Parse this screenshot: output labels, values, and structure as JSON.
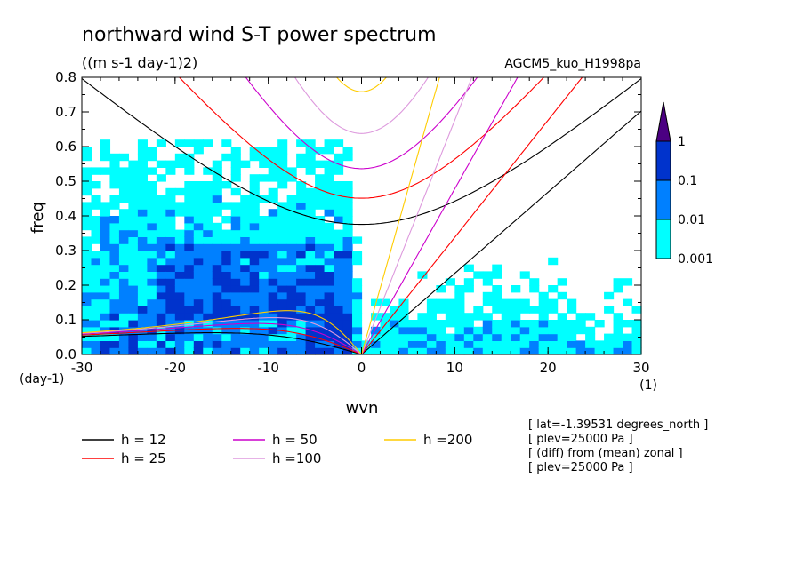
{
  "chart_data": {
    "type": "heatmap",
    "title": "northward wind S-T power spectrum",
    "subtitle": "((m s-1 day-1)2)",
    "run_label": "AGCM5_kuo_H1998pa",
    "xlabel": "wvn",
    "ylabel": "freq",
    "x_unit": "(1)",
    "y_unit": "(day-1)",
    "xlim": [
      -30,
      30
    ],
    "ylim": [
      0.0,
      0.8
    ],
    "x_ticks": [
      "-30",
      "-20",
      "-10",
      "0",
      "10",
      "20",
      "30"
    ],
    "y_ticks": [
      "0.0",
      "0.1",
      "0.2",
      "0.3",
      "0.4",
      "0.5",
      "0.6",
      "0.7",
      "0.8"
    ],
    "color_levels": [
      "0.001",
      "0.01",
      "0.1",
      "1"
    ],
    "level_colors": [
      "#00ffff",
      "#0080ff",
      "#0033cc",
      "#4b0082"
    ],
    "dispersion_curves": [
      {
        "name": "h = 12",
        "equivalent_depth": 12,
        "color": "#000000"
      },
      {
        "name": "h = 25",
        "equivalent_depth": 25,
        "color": "#ff0000"
      },
      {
        "name": "h = 50",
        "equivalent_depth": 50,
        "color": "#cc00cc"
      },
      {
        "name": "h =100",
        "equivalent_depth": 100,
        "color": "#dd99dd"
      },
      {
        "name": "h =200",
        "equivalent_depth": 200,
        "color": "#ffcc00"
      }
    ],
    "info_lines": [
      "[ lat=-1.39531 degrees_north ]",
      "[ plev=25000 Pa ]",
      "[ (diff) from (mean) zonal ]",
      "[ plev=25000 Pa ]"
    ]
  }
}
